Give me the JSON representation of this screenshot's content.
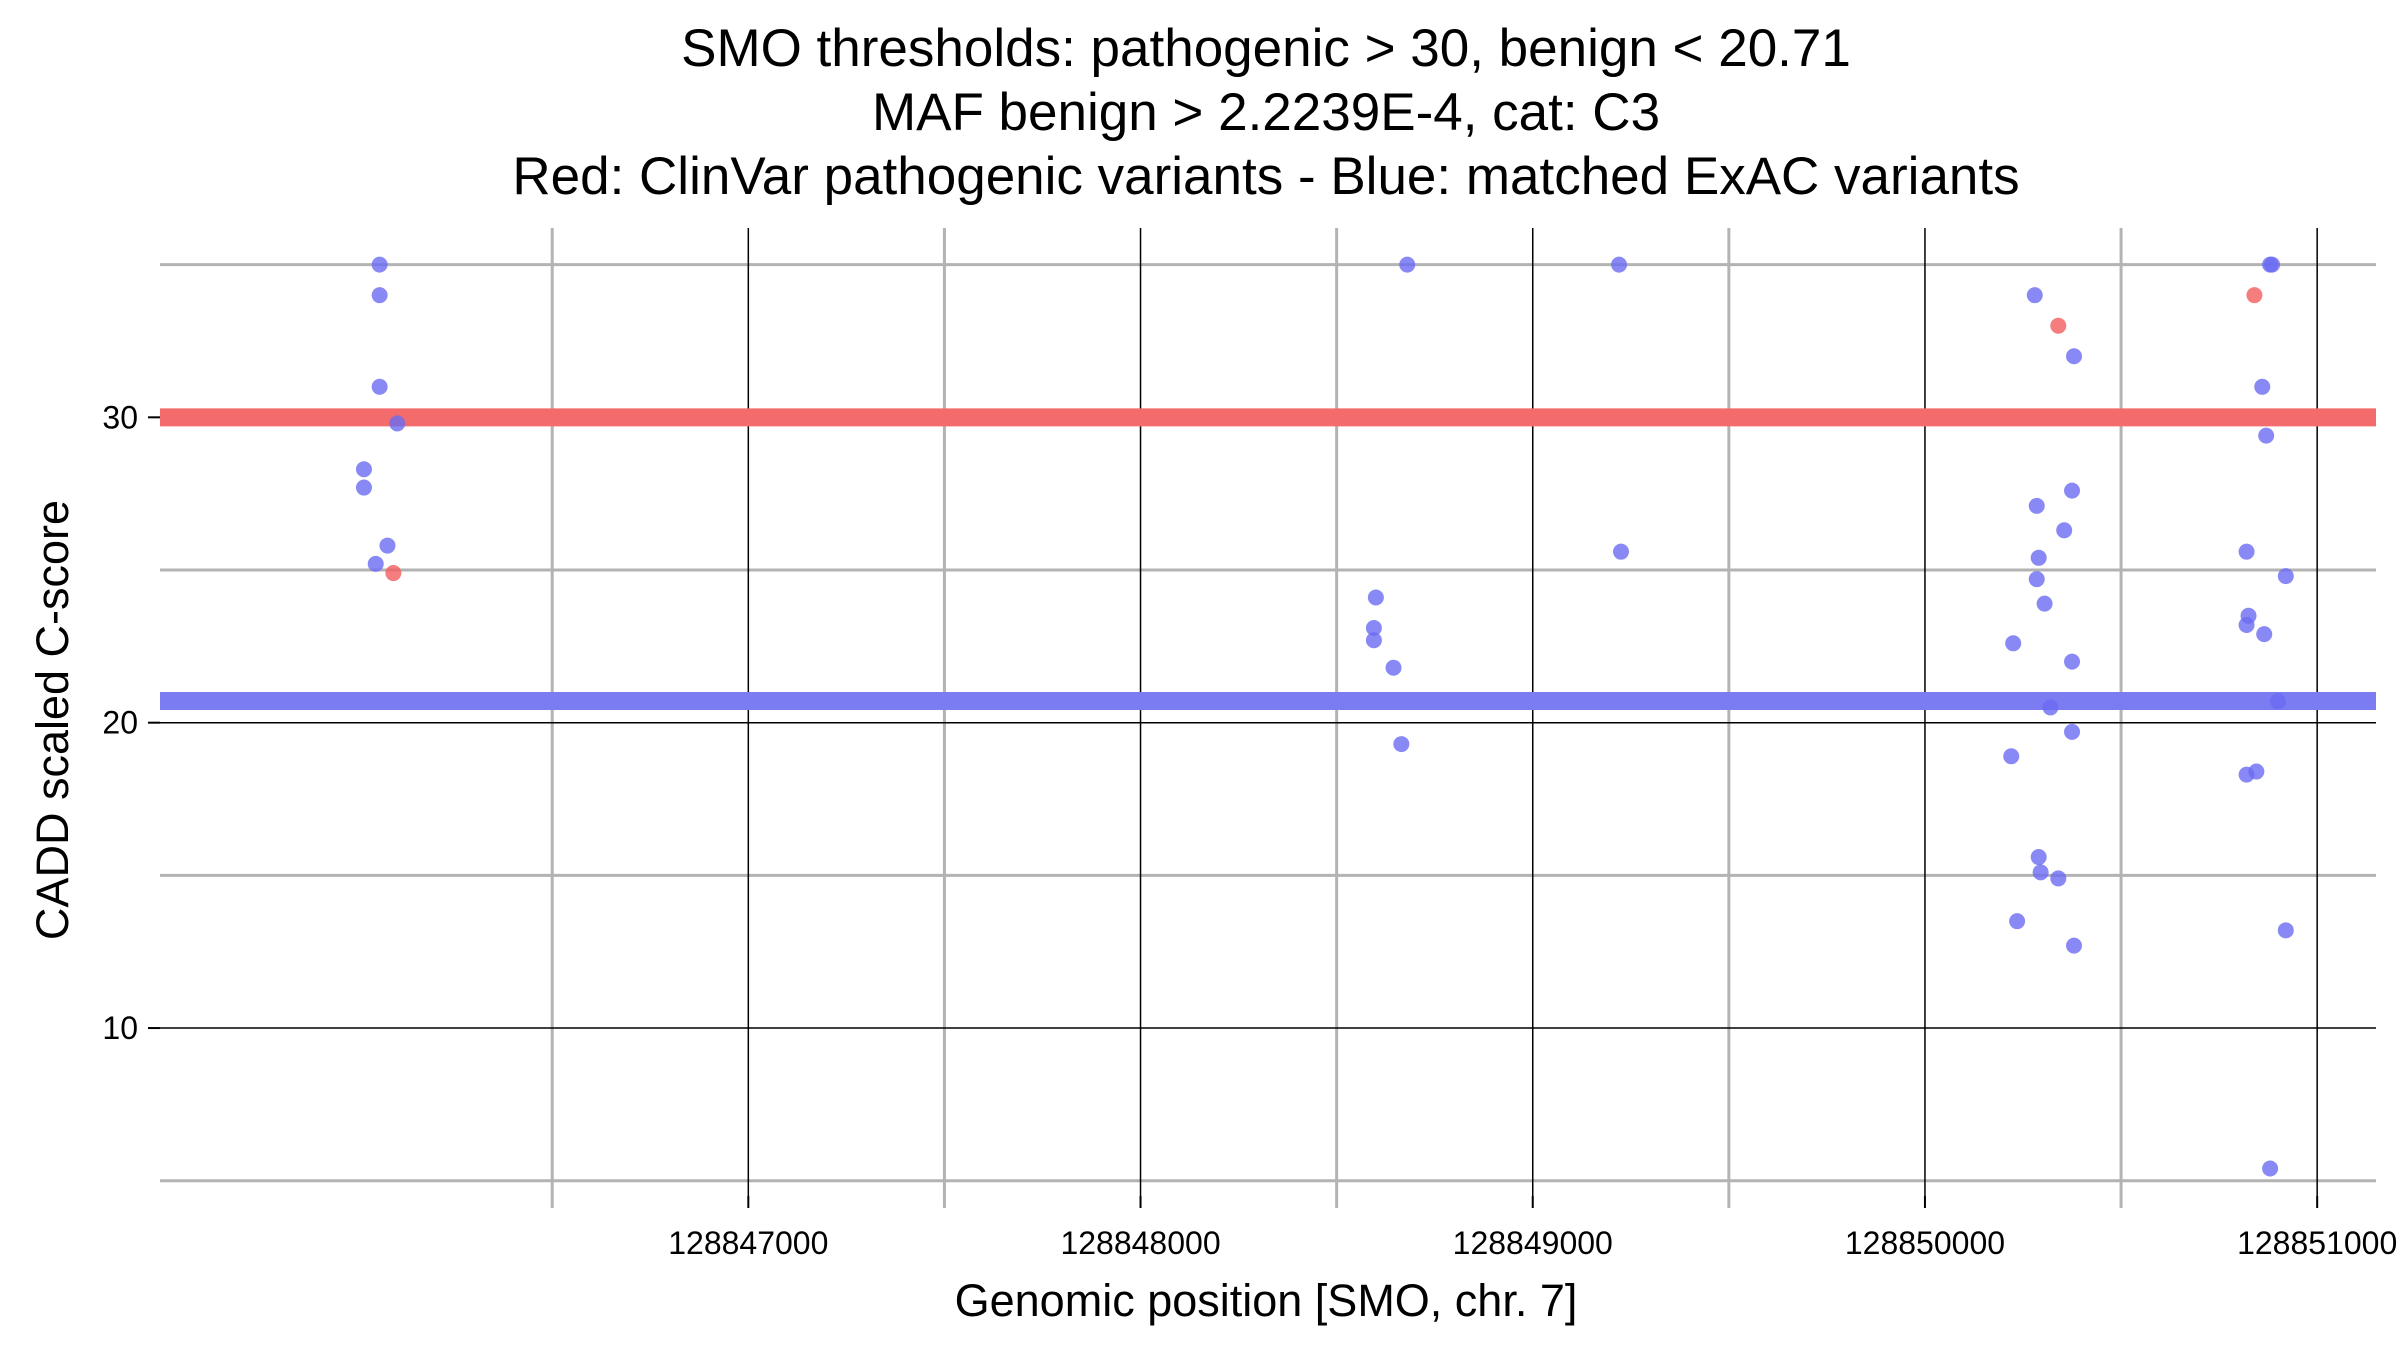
{
  "chart_data": {
    "type": "scatter",
    "title": [
      "SMO thresholds: pathogenic > 30, benign < 20.71",
      "MAF benign > 2.2239E-4, cat: C3",
      "Red: ClinVar pathogenic variants - Blue: matched ExAC variants"
    ],
    "xlabel": "Genomic position [SMO, chr. 7]",
    "ylabel": "CADD scaled C-score",
    "xlim": [
      128845500,
      128851150
    ],
    "ylim": [
      4.5,
      36.2
    ],
    "x_major_ticks": [
      128847000,
      128848000,
      128849000,
      128850000,
      128851000
    ],
    "x_minor_ticks": [
      128846500,
      128847500,
      128848500,
      128849500,
      128850500
    ],
    "y_major_ticks": [
      10,
      20,
      30
    ],
    "y_minor_ticks": [
      5,
      15,
      25,
      35
    ],
    "grid": true,
    "thresholds": [
      {
        "name": "pathogenic",
        "value": 30,
        "color": "#f36b6b"
      },
      {
        "name": "benign",
        "value": 20.71,
        "color": "#7b7bf2"
      }
    ],
    "series": [
      {
        "color": "#6b6bf2",
        "points": [
          [
            128846060,
            35
          ],
          [
            128846060,
            34
          ],
          [
            128846060,
            31
          ],
          [
            128846020,
            28.3
          ],
          [
            128846020,
            27.7
          ],
          [
            128846080,
            25.8
          ],
          [
            128846050,
            25.2
          ],
          [
            128846105,
            29.8
          ],
          [
            128848600,
            24.1
          ],
          [
            128848595,
            23.1
          ],
          [
            128848595,
            22.7
          ],
          [
            128848645,
            21.8
          ],
          [
            128848665,
            19.3
          ],
          [
            128848680,
            35
          ],
          [
            128849220,
            35
          ],
          [
            128849225,
            25.6
          ],
          [
            128850280,
            34
          ],
          [
            128850285,
            27.1
          ],
          [
            128850290,
            25.4
          ],
          [
            128850285,
            24.7
          ],
          [
            128850305,
            23.9
          ],
          [
            128850225,
            22.6
          ],
          [
            128850220,
            18.9
          ],
          [
            128850235,
            13.5
          ],
          [
            128850290,
            15.6
          ],
          [
            128850295,
            15.1
          ],
          [
            128850380,
            32
          ],
          [
            128850375,
            27.6
          ],
          [
            128850355,
            26.3
          ],
          [
            128850375,
            22
          ],
          [
            128850320,
            20.5
          ],
          [
            128850375,
            19.7
          ],
          [
            128850340,
            14.9
          ],
          [
            128850380,
            12.7
          ],
          [
            128850860,
            31
          ],
          [
            128850870,
            29.4
          ],
          [
            128850820,
            25.6
          ],
          [
            128850825,
            23.5
          ],
          [
            128850820,
            23.2
          ],
          [
            128850865,
            22.9
          ],
          [
            128850920,
            24.8
          ],
          [
            128850820,
            18.3
          ],
          [
            128850845,
            18.4
          ],
          [
            128850900,
            20.7
          ],
          [
            128850920,
            13.2
          ],
          [
            128850880,
            5.4
          ],
          [
            128850880,
            35
          ],
          [
            128850885,
            35
          ]
        ]
      },
      {
        "color": "#f25c5c",
        "points": [
          [
            128846095,
            24.9
          ],
          [
            128850340,
            33
          ],
          [
            128850840,
            34
          ]
        ]
      }
    ]
  }
}
